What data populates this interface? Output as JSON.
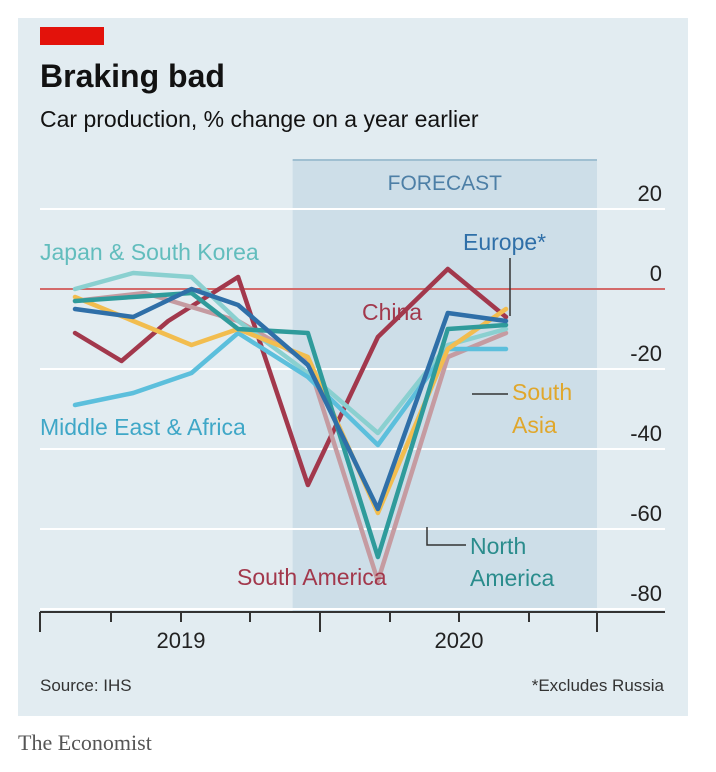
{
  "header": {
    "title": "Braking bad",
    "subtitle": "Car production, % change on a year earlier"
  },
  "footer": {
    "source": "Source: IHS",
    "note": "*Excludes Russia",
    "brand": "The Economist"
  },
  "colors": {
    "accent_red": "#e3120b",
    "background": "#e2ecf1",
    "forecast_band": "#c6d9e4",
    "zero_line": "#d36a6a",
    "grid": "#ffffff"
  },
  "chart_data": {
    "type": "line",
    "forecast_label": "FORECAST",
    "forecast_start_month": 9,
    "forecast_end_month": 20,
    "x_tick_labels": [
      "2019",
      "2020"
    ],
    "y_ticks": [
      20,
      0,
      -20,
      -40,
      -60,
      -80
    ],
    "ylim": [
      -80,
      20
    ],
    "grid": true,
    "series": [
      {
        "name": "China",
        "color": "#a2384c",
        "label_color": "#a2384c",
        "values": [
          {
            "x": 0,
            "y": -11
          },
          {
            "x": 2,
            "y": -18
          },
          {
            "x": 4,
            "y": -8
          },
          {
            "x": 7,
            "y": 3
          },
          {
            "x": 10,
            "y": -49
          },
          {
            "x": 13,
            "y": -12
          },
          {
            "x": 16,
            "y": 5
          },
          {
            "x": 18.5,
            "y": -7
          }
        ]
      },
      {
        "name": "South America",
        "color": "#c59ba1",
        "label_color": "#a2384c",
        "values": [
          {
            "x": 0,
            "y": -3
          },
          {
            "x": 3,
            "y": -1
          },
          {
            "x": 7,
            "y": -8
          },
          {
            "x": 10,
            "y": -18
          },
          {
            "x": 13,
            "y": -73
          },
          {
            "x": 16,
            "y": -17
          },
          {
            "x": 18.5,
            "y": -11
          }
        ]
      },
      {
        "name": "Japan & South Korea",
        "color": "#8ad0d0",
        "label_color": "#62bdbd",
        "values": [
          {
            "x": 0,
            "y": 0
          },
          {
            "x": 2.5,
            "y": 4
          },
          {
            "x": 5,
            "y": 3
          },
          {
            "x": 7,
            "y": -8
          },
          {
            "x": 10,
            "y": -21
          },
          {
            "x": 13,
            "y": -36
          },
          {
            "x": 16,
            "y": -14
          },
          {
            "x": 18.5,
            "y": -10
          }
        ]
      },
      {
        "name": "Middle East & Africa",
        "color": "#5cbfdc",
        "label_color": "#3fa7c7",
        "values": [
          {
            "x": 0,
            "y": -29
          },
          {
            "x": 2.5,
            "y": -26
          },
          {
            "x": 5,
            "y": -21
          },
          {
            "x": 7,
            "y": -11
          },
          {
            "x": 10,
            "y": -22
          },
          {
            "x": 13,
            "y": -39
          },
          {
            "x": 16,
            "y": -15
          },
          {
            "x": 18.5,
            "y": -15
          }
        ]
      },
      {
        "name": "South Asia",
        "color": "#f2bd4f",
        "label_color": "#e0a72c",
        "values": [
          {
            "x": 0,
            "y": -2
          },
          {
            "x": 2.5,
            "y": -8
          },
          {
            "x": 5,
            "y": -14
          },
          {
            "x": 7,
            "y": -10
          },
          {
            "x": 10,
            "y": -17
          },
          {
            "x": 13,
            "y": -56
          },
          {
            "x": 16,
            "y": -15
          },
          {
            "x": 18.5,
            "y": -5
          }
        ]
      },
      {
        "name": "North America",
        "color": "#2f9b9b",
        "label_color": "#2a8c8c",
        "values": [
          {
            "x": 0,
            "y": -3
          },
          {
            "x": 2.5,
            "y": -2
          },
          {
            "x": 5,
            "y": -1
          },
          {
            "x": 7,
            "y": -10
          },
          {
            "x": 10,
            "y": -11
          },
          {
            "x": 13,
            "y": -67
          },
          {
            "x": 16,
            "y": -10
          },
          {
            "x": 18.5,
            "y": -9
          }
        ]
      },
      {
        "name": "Europe*",
        "color": "#2f6fa8",
        "label_color": "#2f6fa8",
        "values": [
          {
            "x": 0,
            "y": -5
          },
          {
            "x": 2.5,
            "y": -7
          },
          {
            "x": 5,
            "y": 0
          },
          {
            "x": 7,
            "y": -4
          },
          {
            "x": 10,
            "y": -19
          },
          {
            "x": 13,
            "y": -55
          },
          {
            "x": 16,
            "y": -6
          },
          {
            "x": 18.5,
            "y": -8
          }
        ]
      }
    ]
  }
}
